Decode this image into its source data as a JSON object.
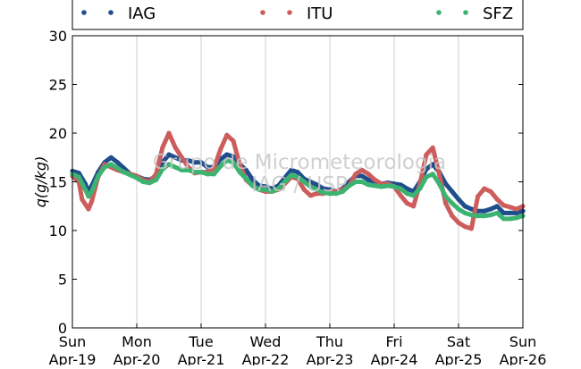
{
  "chart_data": {
    "type": "line",
    "ylabel": "q(g/kg)",
    "ylim": [
      0,
      30
    ],
    "yticks": [
      0,
      5,
      10,
      15,
      20,
      25,
      30
    ],
    "xlim": [
      0,
      7
    ],
    "grid": "vertical",
    "legend_position": "top",
    "watermark": [
      "Grupo de Micrometeorologia",
      "IAG / USP"
    ],
    "x_ticks": [
      {
        "x": 0,
        "day": "Sun",
        "date": "Apr-19"
      },
      {
        "x": 1,
        "day": "Mon",
        "date": "Apr-20"
      },
      {
        "x": 2,
        "day": "Tue",
        "date": "Apr-21"
      },
      {
        "x": 3,
        "day": "Wed",
        "date": "Apr-22"
      },
      {
        "x": 4,
        "day": "Thu",
        "date": "Apr-23"
      },
      {
        "x": 5,
        "day": "Fri",
        "date": "Apr-24"
      },
      {
        "x": 6,
        "day": "Sat",
        "date": "Apr-25"
      },
      {
        "x": 7,
        "day": "Sun",
        "date": "Apr-26"
      }
    ],
    "series": [
      {
        "name": "IAG",
        "color": "#1f4e8c",
        "points": [
          [
            0.0,
            16.1
          ],
          [
            0.1,
            15.9
          ],
          [
            0.2,
            14.8
          ],
          [
            0.25,
            14.0
          ],
          [
            0.3,
            14.6
          ],
          [
            0.4,
            16.0
          ],
          [
            0.5,
            17.0
          ],
          [
            0.6,
            17.5
          ],
          [
            0.7,
            17.0
          ],
          [
            0.8,
            16.4
          ],
          [
            0.9,
            15.8
          ],
          [
            1.0,
            15.6
          ],
          [
            1.1,
            15.3
          ],
          [
            1.2,
            15.2
          ],
          [
            1.3,
            15.6
          ],
          [
            1.4,
            17.0
          ],
          [
            1.5,
            17.8
          ],
          [
            1.6,
            17.5
          ],
          [
            1.7,
            17.2
          ],
          [
            1.8,
            17.2
          ],
          [
            1.9,
            17.0
          ],
          [
            2.0,
            17.0
          ],
          [
            2.1,
            16.5
          ],
          [
            2.2,
            16.5
          ],
          [
            2.3,
            17.3
          ],
          [
            2.4,
            17.8
          ],
          [
            2.5,
            17.6
          ],
          [
            2.6,
            16.8
          ],
          [
            2.7,
            16.2
          ],
          [
            2.8,
            15.2
          ],
          [
            2.9,
            14.6
          ],
          [
            3.0,
            14.5
          ],
          [
            3.1,
            14.3
          ],
          [
            3.2,
            14.6
          ],
          [
            3.3,
            15.4
          ],
          [
            3.4,
            16.2
          ],
          [
            3.5,
            16.0
          ],
          [
            3.6,
            15.3
          ],
          [
            3.7,
            15.0
          ],
          [
            3.8,
            14.7
          ],
          [
            3.9,
            14.3
          ],
          [
            4.0,
            14.2
          ],
          [
            4.1,
            14.0
          ],
          [
            4.2,
            14.3
          ],
          [
            4.3,
            15.0
          ],
          [
            4.4,
            15.6
          ],
          [
            4.5,
            15.6
          ],
          [
            4.6,
            15.2
          ],
          [
            4.7,
            15.0
          ],
          [
            4.8,
            14.8
          ],
          [
            4.9,
            14.9
          ],
          [
            5.0,
            14.8
          ],
          [
            5.1,
            14.7
          ],
          [
            5.2,
            14.3
          ],
          [
            5.3,
            14.0
          ],
          [
            5.4,
            15.0
          ],
          [
            5.5,
            16.3
          ],
          [
            5.6,
            16.8
          ],
          [
            5.7,
            16.0
          ],
          [
            5.8,
            14.8
          ],
          [
            5.9,
            14.0
          ],
          [
            6.0,
            13.2
          ],
          [
            6.1,
            12.5
          ],
          [
            6.2,
            12.2
          ],
          [
            6.3,
            12.0
          ],
          [
            6.4,
            12.0
          ],
          [
            6.5,
            12.2
          ],
          [
            6.6,
            12.5
          ],
          [
            6.7,
            11.8
          ],
          [
            6.8,
            11.8
          ],
          [
            6.9,
            11.8
          ],
          [
            7.0,
            12.0
          ]
        ]
      },
      {
        "name": "ITU",
        "color": "#cd5c5c",
        "points": [
          [
            0.0,
            15.6
          ],
          [
            0.1,
            15.0
          ],
          [
            0.15,
            13.2
          ],
          [
            0.25,
            12.2
          ],
          [
            0.3,
            13.0
          ],
          [
            0.4,
            15.5
          ],
          [
            0.5,
            16.8
          ],
          [
            0.6,
            16.5
          ],
          [
            0.7,
            16.2
          ],
          [
            0.8,
            16.0
          ],
          [
            0.9,
            15.8
          ],
          [
            1.0,
            15.6
          ],
          [
            1.1,
            15.2
          ],
          [
            1.2,
            15.0
          ],
          [
            1.3,
            15.8
          ],
          [
            1.4,
            18.5
          ],
          [
            1.5,
            20.0
          ],
          [
            1.6,
            18.5
          ],
          [
            1.7,
            17.5
          ],
          [
            1.8,
            16.5
          ],
          [
            1.9,
            15.9
          ],
          [
            2.0,
            16.0
          ],
          [
            2.1,
            16.0
          ],
          [
            2.2,
            16.4
          ],
          [
            2.3,
            18.3
          ],
          [
            2.4,
            19.8
          ],
          [
            2.5,
            19.2
          ],
          [
            2.6,
            16.8
          ],
          [
            2.7,
            15.2
          ],
          [
            2.8,
            14.6
          ],
          [
            2.9,
            14.2
          ],
          [
            3.0,
            14.0
          ],
          [
            3.1,
            14.0
          ],
          [
            3.2,
            14.2
          ],
          [
            3.3,
            14.8
          ],
          [
            3.4,
            15.5
          ],
          [
            3.5,
            15.3
          ],
          [
            3.6,
            14.2
          ],
          [
            3.7,
            13.6
          ],
          [
            3.8,
            13.8
          ],
          [
            3.9,
            13.8
          ],
          [
            4.0,
            14.0
          ],
          [
            4.1,
            14.0
          ],
          [
            4.2,
            14.2
          ],
          [
            4.3,
            14.6
          ],
          [
            4.4,
            15.8
          ],
          [
            4.5,
            16.2
          ],
          [
            4.6,
            15.8
          ],
          [
            4.7,
            15.2
          ],
          [
            4.8,
            14.8
          ],
          [
            4.9,
            14.8
          ],
          [
            5.0,
            14.5
          ],
          [
            5.1,
            13.6
          ],
          [
            5.2,
            12.8
          ],
          [
            5.3,
            12.5
          ],
          [
            5.4,
            14.8
          ],
          [
            5.5,
            17.8
          ],
          [
            5.6,
            18.5
          ],
          [
            5.7,
            15.8
          ],
          [
            5.8,
            12.8
          ],
          [
            5.9,
            11.5
          ],
          [
            6.0,
            10.8
          ],
          [
            6.1,
            10.4
          ],
          [
            6.2,
            10.2
          ],
          [
            6.3,
            13.5
          ],
          [
            6.4,
            14.3
          ],
          [
            6.5,
            14.0
          ],
          [
            6.6,
            13.2
          ],
          [
            6.7,
            12.6
          ],
          [
            6.8,
            12.4
          ],
          [
            6.9,
            12.2
          ],
          [
            7.0,
            12.5
          ]
        ]
      },
      {
        "name": "SFZ",
        "color": "#3cb371",
        "points": [
          [
            0.0,
            15.8
          ],
          [
            0.1,
            15.5
          ],
          [
            0.2,
            14.2
          ],
          [
            0.25,
            13.5
          ],
          [
            0.3,
            14.0
          ],
          [
            0.4,
            15.6
          ],
          [
            0.5,
            16.5
          ],
          [
            0.6,
            16.8
          ],
          [
            0.7,
            16.4
          ],
          [
            0.8,
            16.0
          ],
          [
            0.9,
            15.7
          ],
          [
            1.0,
            15.4
          ],
          [
            1.1,
            15.0
          ],
          [
            1.2,
            14.9
          ],
          [
            1.3,
            15.2
          ],
          [
            1.4,
            16.3
          ],
          [
            1.5,
            16.8
          ],
          [
            1.6,
            16.5
          ],
          [
            1.7,
            16.2
          ],
          [
            1.8,
            16.2
          ],
          [
            1.9,
            16.0
          ],
          [
            2.0,
            16.0
          ],
          [
            2.1,
            15.8
          ],
          [
            2.2,
            15.8
          ],
          [
            2.3,
            16.6
          ],
          [
            2.4,
            17.2
          ],
          [
            2.5,
            17.0
          ],
          [
            2.6,
            16.0
          ],
          [
            2.7,
            15.3
          ],
          [
            2.8,
            14.6
          ],
          [
            2.9,
            14.2
          ],
          [
            3.0,
            14.2
          ],
          [
            3.1,
            14.0
          ],
          [
            3.2,
            14.3
          ],
          [
            3.3,
            15.0
          ],
          [
            3.4,
            15.7
          ],
          [
            3.5,
            15.5
          ],
          [
            3.6,
            15.0
          ],
          [
            3.7,
            14.5
          ],
          [
            3.8,
            14.2
          ],
          [
            3.9,
            13.9
          ],
          [
            4.0,
            13.8
          ],
          [
            4.1,
            13.8
          ],
          [
            4.2,
            14.0
          ],
          [
            4.3,
            14.6
          ],
          [
            4.4,
            15.0
          ],
          [
            4.5,
            15.0
          ],
          [
            4.6,
            14.7
          ],
          [
            4.7,
            14.6
          ],
          [
            4.8,
            14.5
          ],
          [
            4.9,
            14.6
          ],
          [
            5.0,
            14.5
          ],
          [
            5.1,
            14.3
          ],
          [
            5.2,
            13.8
          ],
          [
            5.3,
            13.6
          ],
          [
            5.4,
            14.3
          ],
          [
            5.5,
            15.5
          ],
          [
            5.6,
            15.8
          ],
          [
            5.7,
            14.8
          ],
          [
            5.8,
            13.5
          ],
          [
            5.9,
            12.8
          ],
          [
            6.0,
            12.2
          ],
          [
            6.1,
            11.8
          ],
          [
            6.2,
            11.6
          ],
          [
            6.3,
            11.5
          ],
          [
            6.4,
            11.5
          ],
          [
            6.5,
            11.6
          ],
          [
            6.6,
            11.8
          ],
          [
            6.7,
            11.2
          ],
          [
            6.8,
            11.2
          ],
          [
            6.9,
            11.3
          ],
          [
            7.0,
            11.5
          ]
        ]
      }
    ]
  }
}
